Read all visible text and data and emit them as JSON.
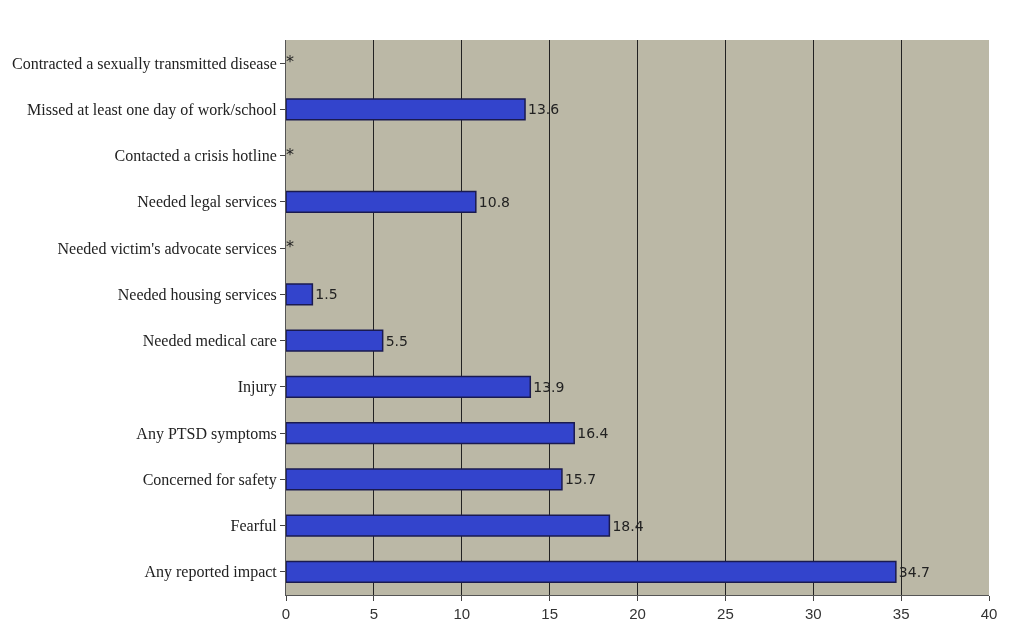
{
  "chart_data": {
    "type": "bar",
    "orientation": "horizontal",
    "categories": [
      "Contracted a sexually transmitted disease",
      "Missed at least one day of work/school",
      "Contacted a crisis hotline",
      "Needed legal services",
      "Needed victim's advocate services",
      "Needed housing services",
      "Needed medical care",
      "Injury",
      "Any PTSD symptoms",
      "Concerned for safety",
      "Fearful",
      "Any reported impact"
    ],
    "values": [
      null,
      13.6,
      null,
      10.8,
      null,
      1.5,
      5.5,
      13.9,
      16.4,
      15.7,
      18.4,
      34.7
    ],
    "value_labels": [
      "*",
      "13.6",
      "*",
      "10.8",
      "*",
      "1.5",
      "5.5",
      "13.9",
      "16.4",
      "15.7",
      "18.4",
      "34.7"
    ],
    "color": "#3344cc",
    "xlim": [
      0,
      40
    ],
    "xticks": [
      0,
      5,
      10,
      15,
      20,
      25,
      30,
      35,
      40
    ],
    "grid": "x",
    "legend": false
  }
}
